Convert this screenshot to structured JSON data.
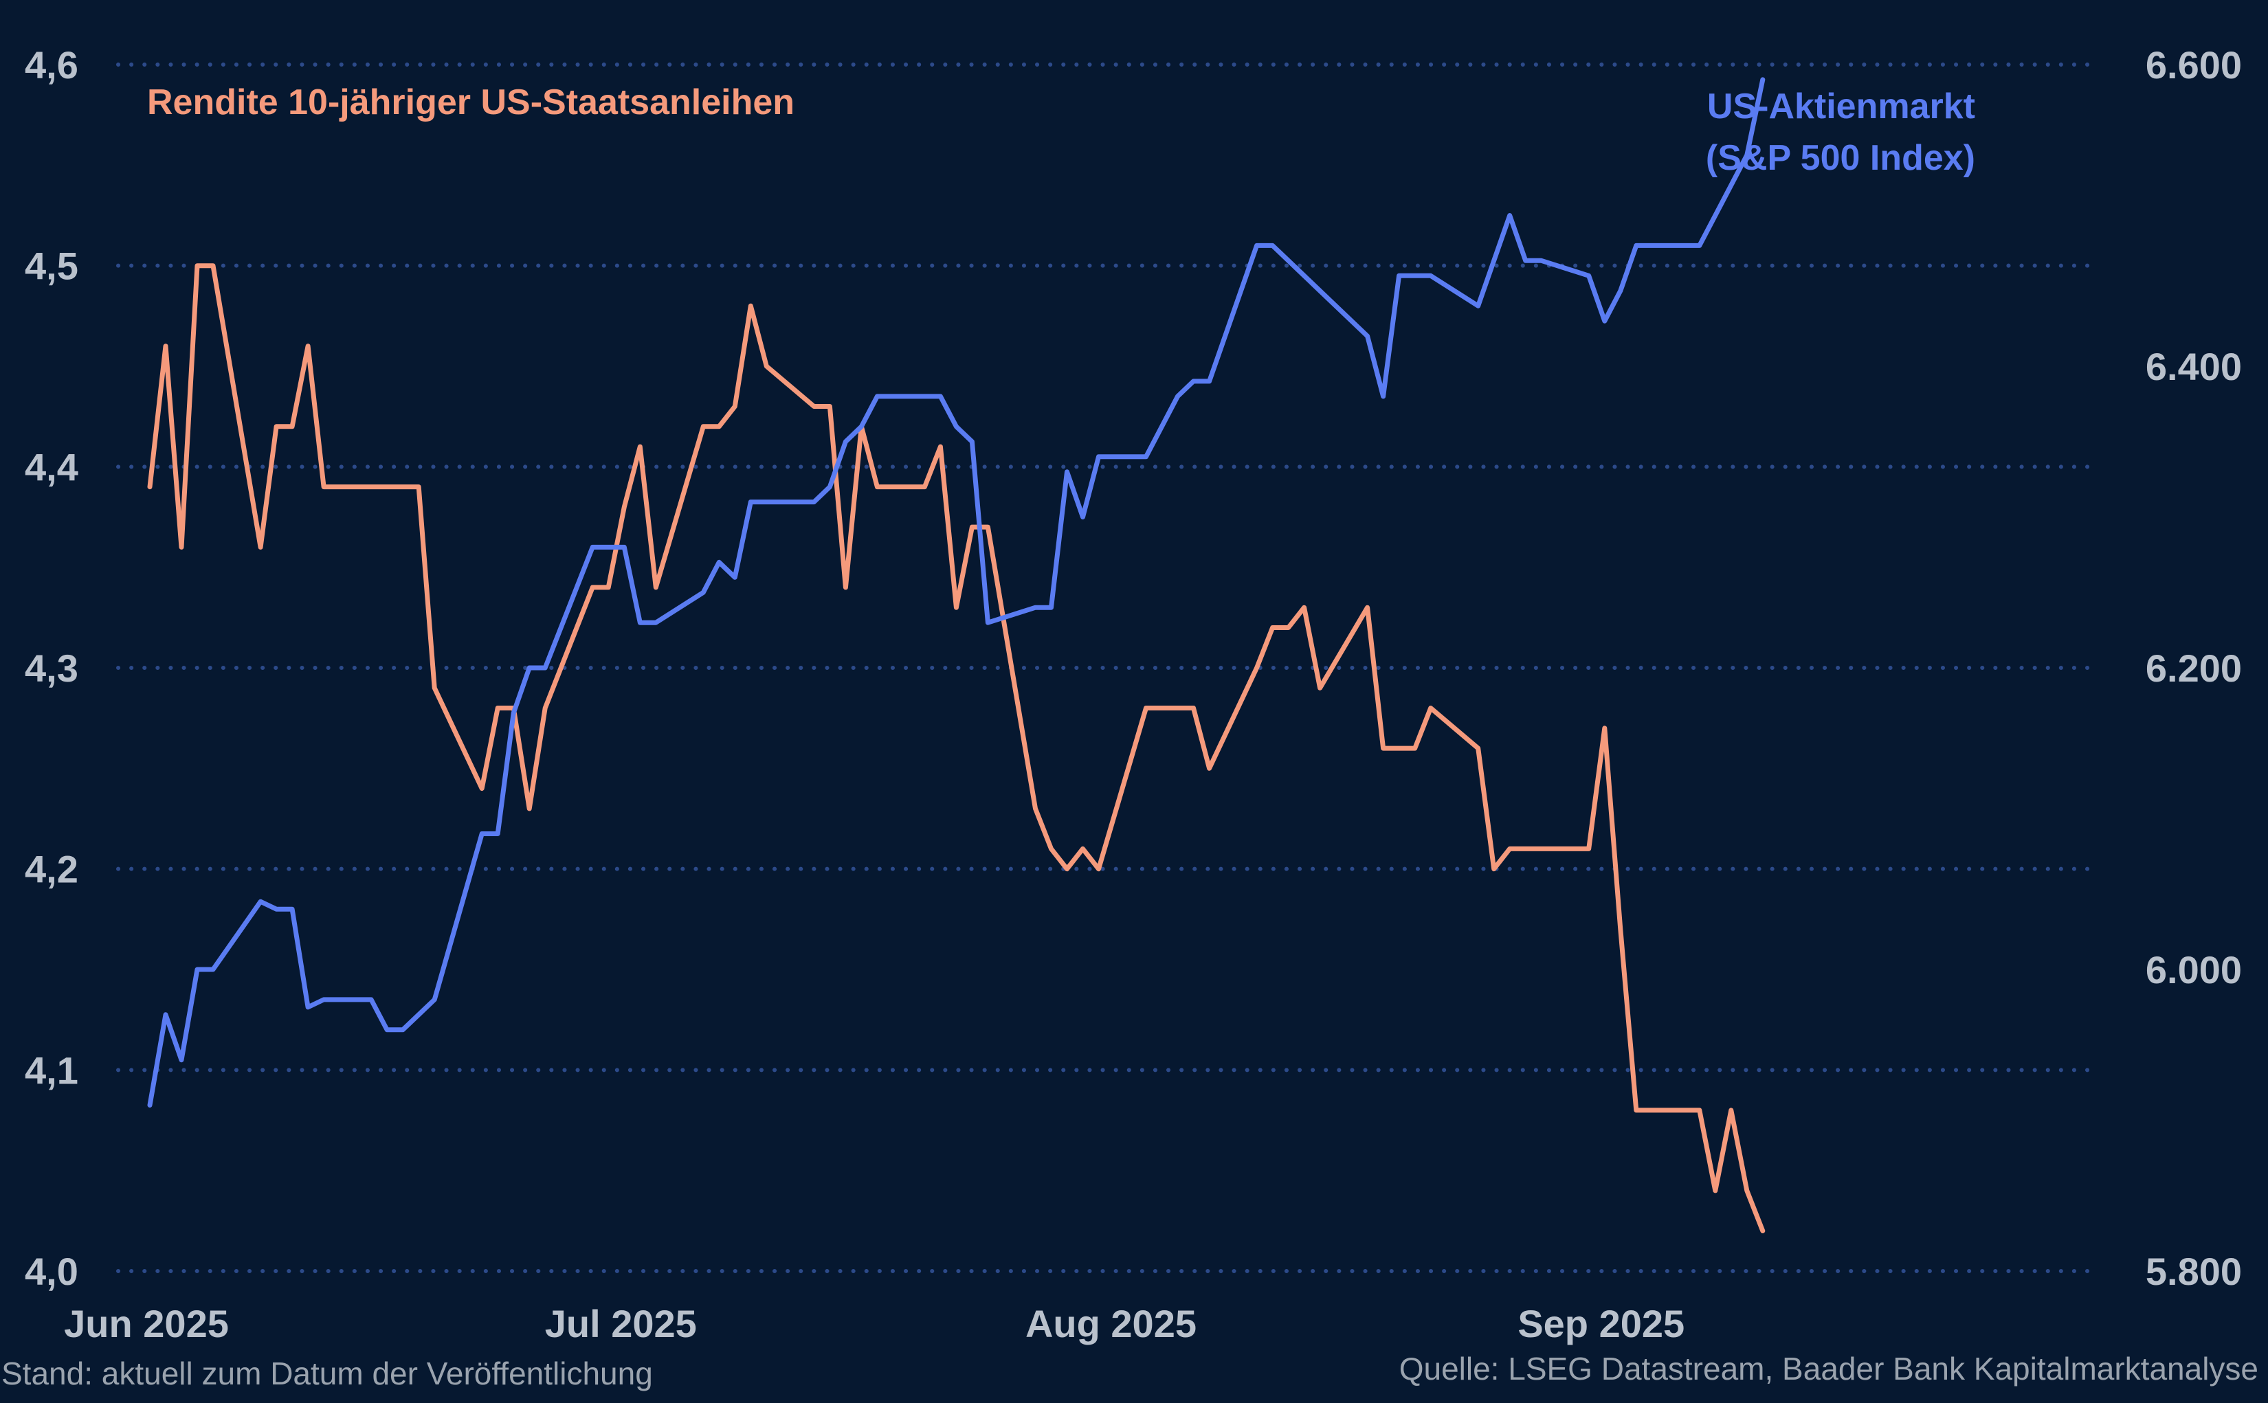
{
  "chart_data": {
    "type": "line",
    "x": [
      "2025-06-02",
      "2025-06-03",
      "2025-06-04",
      "2025-06-05",
      "2025-06-06",
      "2025-06-09",
      "2025-06-10",
      "2025-06-11",
      "2025-06-12",
      "2025-06-13",
      "2025-06-16",
      "2025-06-17",
      "2025-06-18",
      "2025-06-19",
      "2025-06-20",
      "2025-06-23",
      "2025-06-24",
      "2025-06-25",
      "2025-06-26",
      "2025-06-27",
      "2025-06-30",
      "2025-07-01",
      "2025-07-02",
      "2025-07-03",
      "2025-07-04",
      "2025-07-07",
      "2025-07-08",
      "2025-07-09",
      "2025-07-10",
      "2025-07-11",
      "2025-07-14",
      "2025-07-15",
      "2025-07-16",
      "2025-07-17",
      "2025-07-18",
      "2025-07-21",
      "2025-07-22",
      "2025-07-23",
      "2025-07-24",
      "2025-07-25",
      "2025-07-28",
      "2025-07-29",
      "2025-07-30",
      "2025-07-31",
      "2025-08-01",
      "2025-08-04",
      "2025-08-05",
      "2025-08-06",
      "2025-08-07",
      "2025-08-08",
      "2025-08-11",
      "2025-08-12",
      "2025-08-13",
      "2025-08-14",
      "2025-08-15",
      "2025-08-18",
      "2025-08-19",
      "2025-08-20",
      "2025-08-21",
      "2025-08-22",
      "2025-08-25",
      "2025-08-26",
      "2025-08-27",
      "2025-08-28",
      "2025-08-29",
      "2025-09-01",
      "2025-09-02",
      "2025-09-03",
      "2025-09-04",
      "2025-09-05",
      "2025-09-08",
      "2025-09-09",
      "2025-09-10",
      "2025-09-11",
      "2025-09-12"
    ],
    "x_range": [
      "2025-05-31",
      "2025-10-03"
    ],
    "x_ticks": [
      {
        "date": "2025-06-01",
        "label": "Jun 2025"
      },
      {
        "date": "2025-07-01",
        "label": "Jul 2025"
      },
      {
        "date": "2025-08-01",
        "label": "Aug 2025"
      },
      {
        "date": "2025-09-01",
        "label": "Sep 2025"
      }
    ],
    "series": [
      {
        "name": "Rendite 10-jähriger US-Staatsanleihen",
        "axis": "left",
        "color": "#f59a7c",
        "values": [
          4.39,
          4.46,
          4.36,
          4.5,
          4.5,
          4.36,
          4.42,
          4.42,
          4.46,
          4.39,
          4.39,
          4.39,
          4.39,
          4.39,
          4.29,
          4.24,
          4.28,
          4.28,
          4.23,
          4.28,
          4.34,
          4.34,
          4.38,
          4.41,
          4.34,
          4.42,
          4.42,
          4.43,
          4.48,
          4.45,
          4.43,
          4.43,
          4.34,
          4.42,
          4.39,
          4.39,
          4.41,
          4.33,
          4.37,
          4.37,
          4.23,
          4.21,
          4.2,
          4.21,
          4.2,
          4.28,
          4.28,
          4.28,
          4.28,
          4.25,
          4.3,
          4.32,
          4.32,
          4.33,
          4.29,
          4.33,
          4.26,
          4.26,
          4.26,
          4.28,
          4.26,
          4.2,
          4.21,
          4.21,
          4.21,
          4.21,
          4.27,
          4.17,
          4.08,
          4.08,
          4.08,
          4.04,
          4.08,
          4.04,
          4.02
        ]
      },
      {
        "name": "US-Aktienmarkt (S&P 500 Index)",
        "axis": "right",
        "color": "#5a7cf2",
        "values": [
          5910,
          5970,
          5940,
          6000,
          6000,
          6045,
          6040,
          6040,
          5975,
          5980,
          5980,
          5960,
          5960,
          5970,
          5980,
          6090,
          6090,
          6170,
          6200,
          6200,
          6280,
          6280,
          6280,
          6230,
          6230,
          6250,
          6270,
          6260,
          6310,
          6310,
          6310,
          6320,
          6350,
          6360,
          6380,
          6380,
          6380,
          6360,
          6350,
          6230,
          6240,
          6240,
          6330,
          6300,
          6340,
          6340,
          6360,
          6380,
          6390,
          6390,
          6480,
          6480,
          6470,
          6460,
          6450,
          6420,
          6380,
          6460,
          6460,
          6460,
          6440,
          6470,
          6500,
          6470,
          6470,
          6460,
          6430,
          6450,
          6480,
          6480,
          6480,
          6500,
          6520,
          6540,
          6590
        ]
      }
    ],
    "y_left": {
      "ylim": [
        4.0,
        4.6
      ],
      "ticks": [
        "4,0",
        "4,1",
        "4,2",
        "4,3",
        "4,4",
        "4,5",
        "4,6"
      ]
    },
    "y_right": {
      "ylim": [
        5800,
        6600
      ],
      "ticks": [
        "5.800",
        "6.000",
        "6.200",
        "6.400",
        "6.600"
      ]
    },
    "labels": {
      "left_series": "Rendite 10-jähriger US-Staatsanleihen",
      "right_series_line1": "US-Aktienmarkt",
      "right_series_line2": "(S&P 500 Index)"
    },
    "grid": true,
    "gridline_color": "#2c4a8a"
  },
  "footer": {
    "left": "Stand: aktuell zum Datum der Veröffentlichung",
    "right": "Quelle: LSEG Datastream, Baader Bank Kapitalmarktanalyse"
  }
}
